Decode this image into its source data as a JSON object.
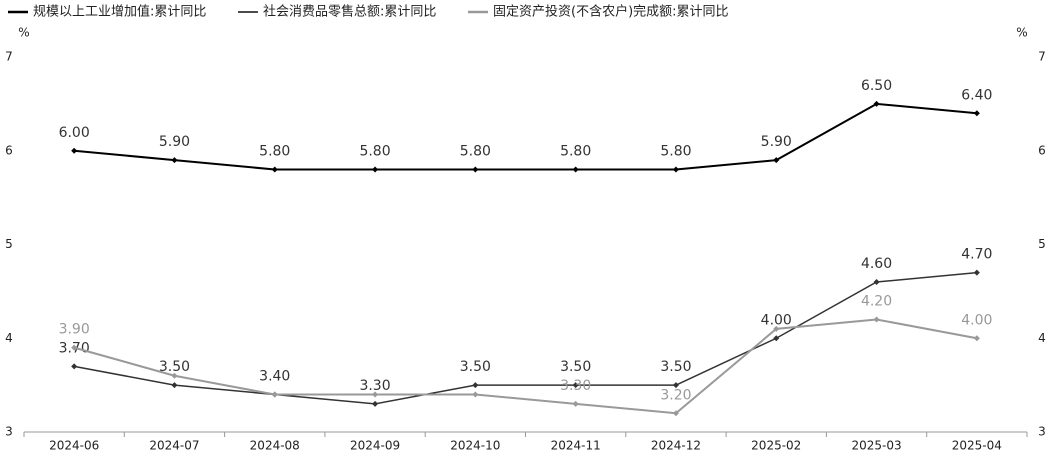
{
  "chart_data": {
    "type": "line",
    "y_label": "%",
    "y2_label": "%",
    "categories": [
      "2024-06",
      "2024-07",
      "2024-08",
      "2024-09",
      "2024-10",
      "2024-11",
      "2024-12",
      "2025-02",
      "2025-03",
      "2025-04"
    ],
    "series": [
      {
        "name": "规模以上工业增加值:累计同比",
        "color": "#000000",
        "values": [
          6.0,
          5.9,
          5.8,
          5.8,
          5.8,
          5.8,
          5.8,
          5.9,
          6.5,
          6.4
        ],
        "value_labels": [
          "6.00",
          "5.90",
          "5.80",
          "5.80",
          "5.80",
          "5.80",
          "5.80",
          "5.90",
          "6.50",
          "6.40"
        ]
      },
      {
        "name": "社会消费品零售总额:累计同比",
        "color": "#333333",
        "values": [
          3.7,
          3.5,
          3.4,
          3.3,
          3.5,
          3.5,
          3.5,
          4.0,
          4.6,
          4.7
        ],
        "value_labels": [
          "3.70",
          "3.50",
          "3.40",
          "3.30",
          "3.50",
          "3.50",
          "3.50",
          "4.00",
          "4.60",
          "4.70"
        ]
      },
      {
        "name": "固定资产投资(不含农户)完成额:累计同比",
        "color": "#999999",
        "values": [
          3.9,
          3.6,
          3.4,
          3.4,
          3.4,
          3.3,
          3.2,
          4.1,
          4.2,
          4.0
        ],
        "value_labels": [
          "3.90",
          null,
          null,
          null,
          null,
          "3.30",
          "3.20",
          null,
          "4.20",
          "4.00"
        ]
      }
    ],
    "ylim": [
      3,
      7
    ],
    "yticks": [
      3,
      4,
      5,
      6,
      7
    ],
    "y2lim": [
      3,
      7
    ],
    "y2ticks": [
      3,
      4,
      5,
      6,
      7
    ]
  }
}
